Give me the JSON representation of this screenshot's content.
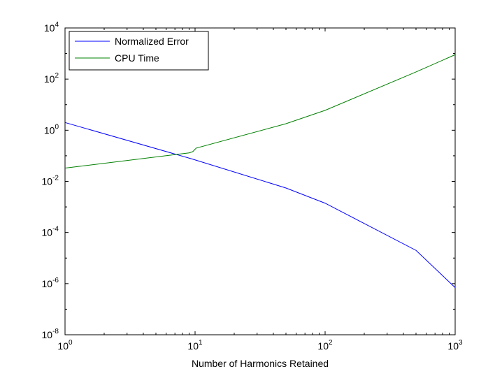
{
  "chart_data": {
    "type": "line",
    "xlabel": "Number of Harmonics Retained",
    "ylabel": "",
    "xscale": "log",
    "yscale": "log",
    "xlim": [
      1,
      1000
    ],
    "ylim": [
      1e-08,
      10000
    ],
    "x_ticks": [
      {
        "base": "10",
        "exp": "0",
        "value": 1
      },
      {
        "base": "10",
        "exp": "1",
        "value": 10
      },
      {
        "base": "10",
        "exp": "2",
        "value": 100
      },
      {
        "base": "10",
        "exp": "3",
        "value": 1000
      }
    ],
    "y_ticks": [
      {
        "base": "10",
        "exp": "-8",
        "value": 1e-08
      },
      {
        "base": "10",
        "exp": "-6",
        "value": 1e-06
      },
      {
        "base": "10",
        "exp": "-4",
        "value": 0.0001
      },
      {
        "base": "10",
        "exp": "-2",
        "value": 0.01
      },
      {
        "base": "10",
        "exp": "0",
        "value": 1
      },
      {
        "base": "10",
        "exp": "2",
        "value": 100
      },
      {
        "base": "10",
        "exp": "4",
        "value": 10000
      }
    ],
    "legend_position": "top-left",
    "grid": false,
    "series": [
      {
        "name": "Normalized Error",
        "color": "#0000ff",
        "x": [
          1,
          9.5,
          50,
          100,
          500,
          1000
        ],
        "y": [
          2.0,
          0.075,
          0.0055,
          0.0014,
          2e-05,
          7e-07
        ]
      },
      {
        "name": "CPU Time",
        "color": "#008000",
        "x": [
          1,
          9.0,
          9.6,
          10.2,
          50,
          100,
          500,
          1000
        ],
        "y": [
          0.033,
          0.13,
          0.145,
          0.2,
          1.8,
          6.0,
          190,
          900
        ]
      }
    ]
  }
}
